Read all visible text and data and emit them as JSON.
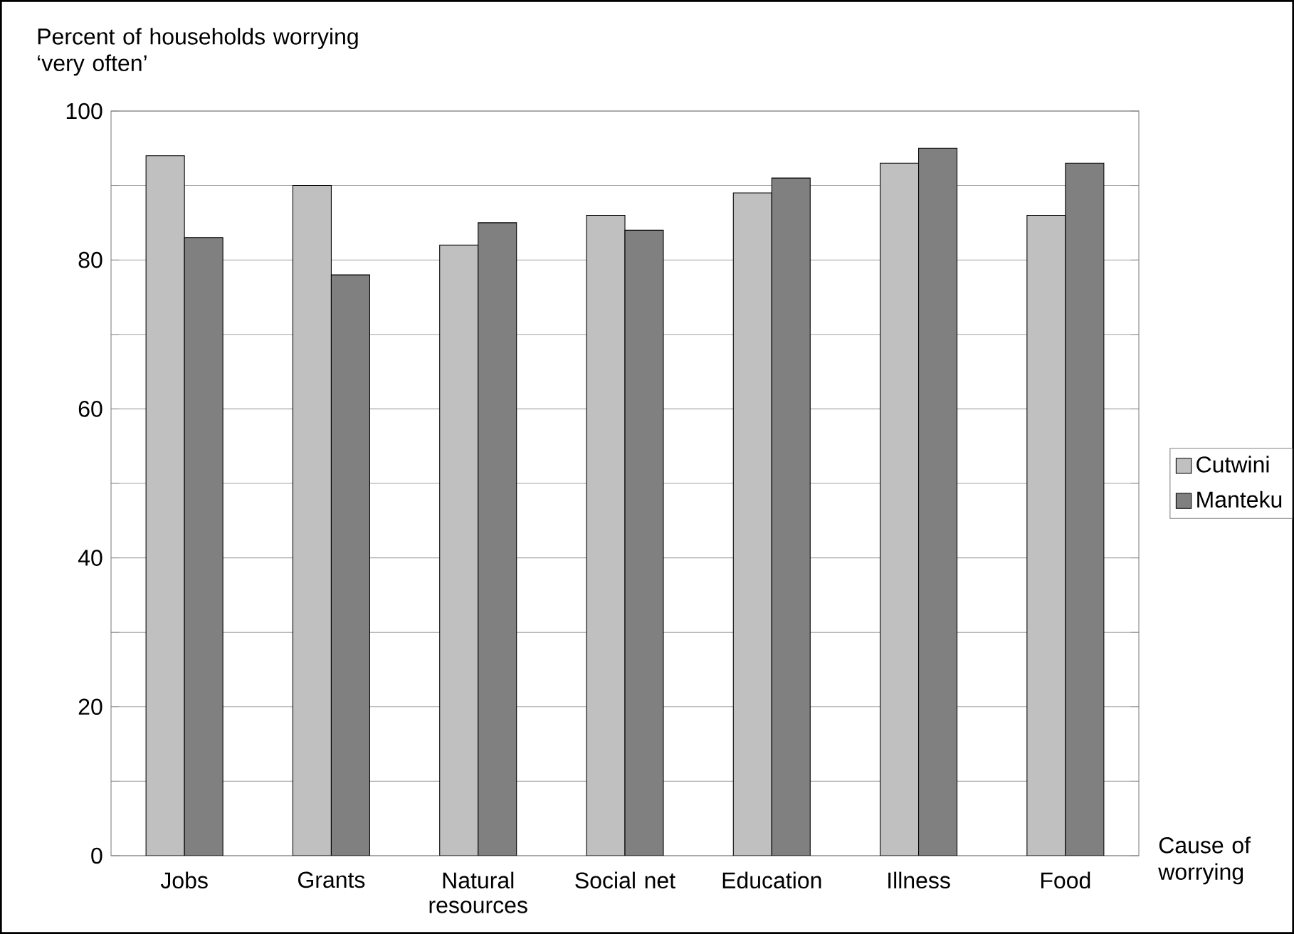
{
  "chart_data": {
    "type": "bar",
    "ylabel": "Percent of households worrying ‘very often’",
    "xlabel": "Cause of worrying",
    "categories": [
      "Jobs",
      "Grants",
      "Natural resources",
      "Social net",
      "Education",
      "Illness",
      "Food"
    ],
    "series": [
      {
        "name": "Cutwini",
        "color": "#c0c0c0",
        "values": [
          94,
          90,
          82,
          86,
          89,
          93,
          86
        ]
      },
      {
        "name": "Manteku",
        "color": "#808080",
        "values": [
          83,
          78,
          85,
          84,
          91,
          95,
          93
        ]
      }
    ],
    "ylim": [
      0,
      100
    ],
    "yticks": [
      0,
      {
        "value": 10,
        "label": null
      },
      20,
      {
        "value": 30,
        "label": null
      },
      40,
      {
        "value": 50,
        "label": null
      },
      60,
      {
        "value": 70,
        "label": null
      },
      80,
      {
        "value": 90,
        "label": null
      },
      100
    ],
    "grid": "y",
    "legend": "right"
  }
}
